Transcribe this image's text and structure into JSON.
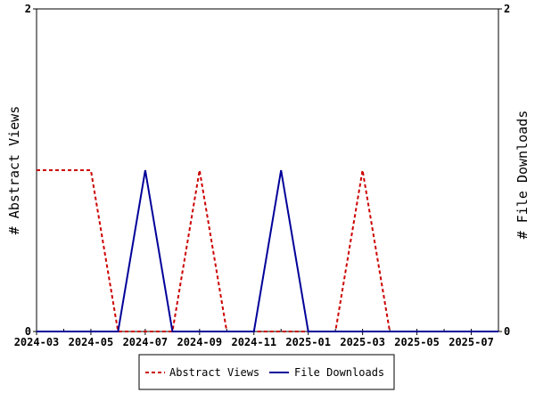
{
  "chart_data": {
    "type": "line",
    "title": "",
    "x_tick_labels": [
      "2024-03",
      "2024-05",
      "2024-07",
      "2024-09",
      "2024-11",
      "2025-01",
      "2025-03",
      "2025-05",
      "2025-07"
    ],
    "xlim": [
      "2024-03",
      "2025-08"
    ],
    "ylabel_left": "# Abstract Views",
    "ylabel_right": "# File Downloads",
    "ylim_left": [
      0,
      2
    ],
    "ylim_right": [
      0,
      2
    ],
    "y_ticks_left": [
      "0",
      "2"
    ],
    "y_ticks_right": [
      "0",
      "2"
    ],
    "grid": false,
    "legend_position": "bottom",
    "series": [
      {
        "name": "Abstract Views",
        "color": "#cc0000",
        "style": "dashed",
        "axis": "left",
        "x": [
          "2024-03",
          "2024-04",
          "2024-05",
          "2024-06",
          "2024-07",
          "2024-08",
          "2024-09",
          "2024-10",
          "2024-11",
          "2024-12",
          "2025-01",
          "2025-02",
          "2025-03",
          "2025-04",
          "2025-05",
          "2025-06",
          "2025-07",
          "2025-08"
        ],
        "values": [
          1,
          1,
          1,
          0,
          0,
          0,
          1,
          0,
          0,
          0,
          0,
          0,
          1,
          0,
          0,
          0,
          0,
          0
        ]
      },
      {
        "name": "File Downloads",
        "color": "#000099",
        "style": "solid",
        "axis": "right",
        "x": [
          "2024-03",
          "2024-04",
          "2024-05",
          "2024-06",
          "2024-07",
          "2024-08",
          "2024-09",
          "2024-10",
          "2024-11",
          "2024-12",
          "2025-01",
          "2025-02",
          "2025-03",
          "2025-04",
          "2025-05",
          "2025-06",
          "2025-07",
          "2025-08"
        ],
        "values": [
          0,
          0,
          0,
          0,
          1,
          0,
          0,
          0,
          0,
          1,
          0,
          0,
          0,
          0,
          0,
          0,
          0,
          0
        ]
      }
    ]
  }
}
